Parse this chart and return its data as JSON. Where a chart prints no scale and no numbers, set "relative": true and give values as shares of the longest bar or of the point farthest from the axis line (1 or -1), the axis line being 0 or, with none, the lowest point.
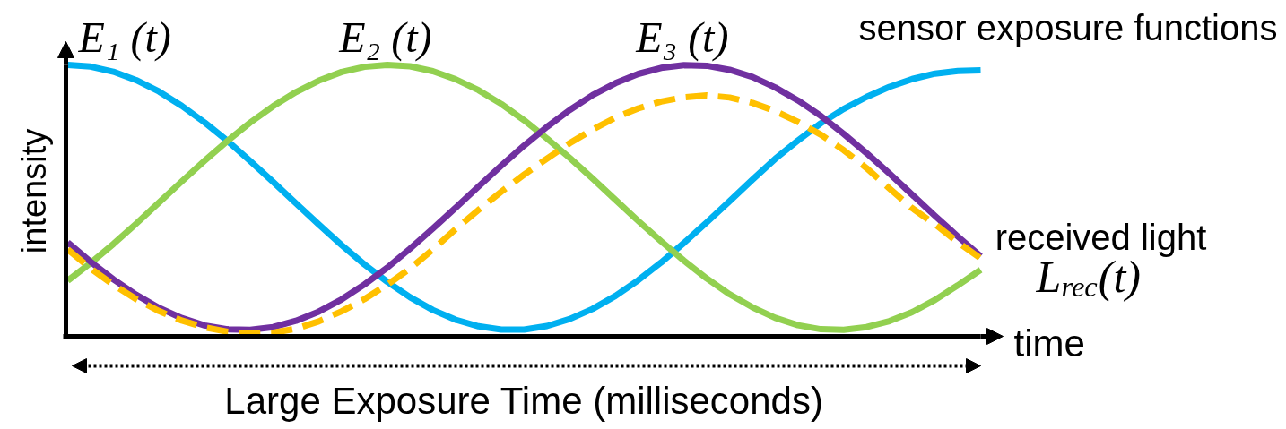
{
  "chart_data": {
    "type": "line",
    "relative": true,
    "xlabel": "time",
    "ylabel": "intensity",
    "annotations": [
      "sensor exposure functions",
      "received light",
      "Large Exposure Time (milliseconds)"
    ],
    "categories": [
      null,
      null,
      null,
      null,
      null,
      null,
      null,
      null,
      null,
      null,
      null,
      null,
      null,
      null,
      null,
      null,
      null,
      null,
      null,
      null,
      null,
      null,
      null,
      null,
      null,
      null,
      null,
      null,
      null,
      null,
      null,
      null,
      null,
      null,
      null,
      null,
      null,
      null,
      null,
      null,
      null
    ],
    "series": [
      {
        "name": "E₁ (t)",
        "color": "#00b0f0",
        "values": [
          1.0,
          0.994,
          0.975,
          0.944,
          0.902,
          0.849,
          0.788,
          0.72,
          0.646,
          0.569,
          0.49,
          0.412,
          0.336,
          0.265,
          0.201,
          0.144,
          0.097,
          0.061,
          0.037,
          0.025,
          0.025,
          0.038,
          0.064,
          0.101,
          0.149,
          0.207,
          0.272,
          0.344,
          0.42,
          0.498,
          0.577,
          0.654,
          0.722,
          0.785,
          0.838,
          0.882,
          0.919,
          0.948,
          0.968,
          0.978,
          0.98
        ]
      },
      {
        "name": "E₂ (t)",
        "color": "#92d050",
        "values": [
          0.205,
          0.27,
          0.34,
          0.415,
          0.493,
          0.571,
          0.647,
          0.72,
          0.788,
          0.848,
          0.9,
          0.942,
          0.974,
          0.993,
          1.0,
          0.995,
          0.977,
          0.947,
          0.907,
          0.856,
          0.796,
          0.729,
          0.657,
          0.581,
          0.503,
          0.425,
          0.35,
          0.279,
          0.213,
          0.155,
          0.107,
          0.068,
          0.041,
          0.026,
          0.024,
          0.034,
          0.056,
          0.089,
          0.134,
          0.188,
          0.245
        ]
      },
      {
        "name": "E₃ (t)",
        "color": "#7030a0",
        "values": [
          0.346,
          0.275,
          0.21,
          0.153,
          0.105,
          0.067,
          0.04,
          0.026,
          0.024,
          0.034,
          0.057,
          0.091,
          0.136,
          0.191,
          0.253,
          0.323,
          0.397,
          0.474,
          0.552,
          0.629,
          0.703,
          0.772,
          0.834,
          0.889,
          0.933,
          0.967,
          0.989,
          0.999,
          0.997,
          0.982,
          0.956,
          0.917,
          0.869,
          0.812,
          0.746,
          0.675,
          0.6,
          0.522,
          0.444,
          0.368,
          0.295
        ]
      },
      {
        "name": "L$_{rec}$(t)",
        "color": "#ffc000",
        "line_style": "dashed",
        "values": [
          0.32,
          0.25,
          0.19,
          0.137,
          0.093,
          0.058,
          0.033,
          0.017,
          0.01,
          0.013,
          0.028,
          0.055,
          0.092,
          0.137,
          0.19,
          0.25,
          0.32,
          0.395,
          0.466,
          0.533,
          0.596,
          0.655,
          0.712,
          0.762,
          0.806,
          0.84,
          0.865,
          0.881,
          0.888,
          0.88,
          0.86,
          0.83,
          0.79,
          0.743,
          0.686,
          0.62,
          0.545,
          0.472,
          0.413,
          0.347,
          0.287
        ]
      }
    ]
  }
}
